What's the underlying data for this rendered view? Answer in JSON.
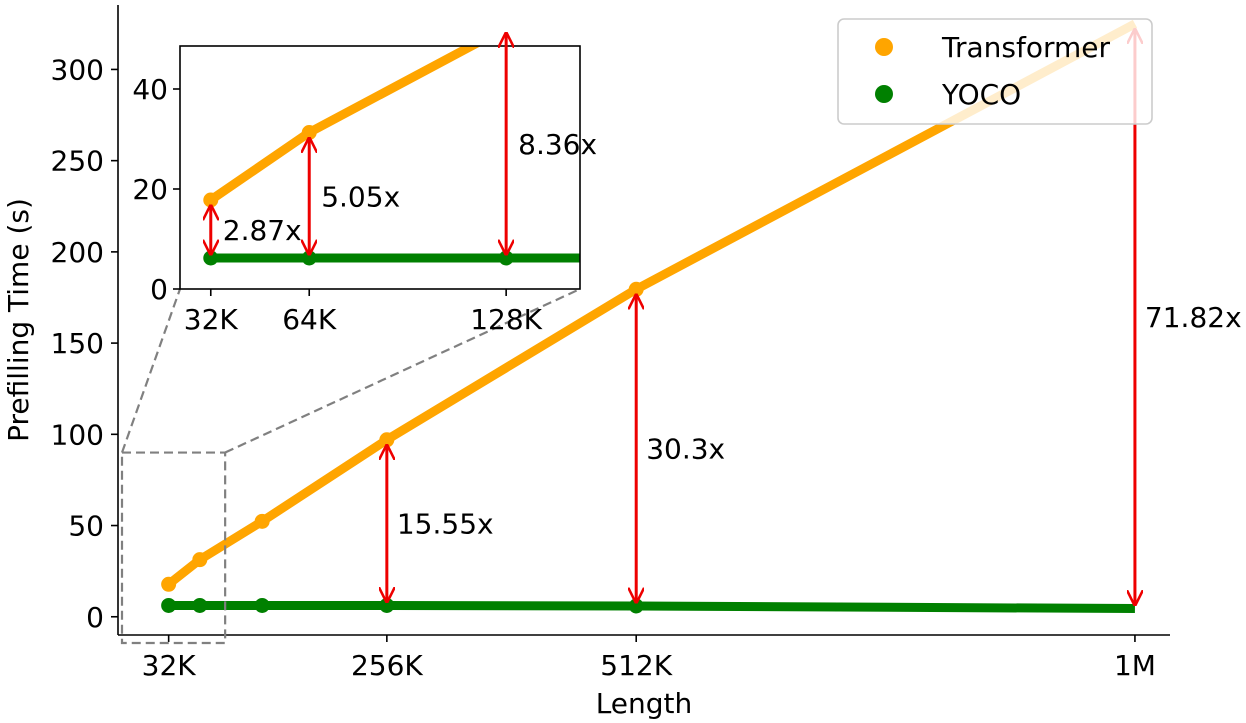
{
  "chart_data": {
    "type": "line",
    "xlabel": "Length",
    "ylabel": "Prefilling Time (s)",
    "xlim": [
      -20,
      1060
    ],
    "ylim": [
      -10,
      326
    ],
    "x_ticks": [
      {
        "value": 32,
        "label": "32K"
      },
      {
        "value": 256,
        "label": "256K"
      },
      {
        "value": 512,
        "label": "512K"
      },
      {
        "value": 1024,
        "label": "1M"
      }
    ],
    "y_ticks": [
      0,
      50,
      100,
      150,
      200,
      250,
      300
    ],
    "legend": {
      "position": "top-right",
      "entries": [
        "Transformer",
        "YOCO"
      ]
    },
    "series": [
      {
        "name": "Transformer",
        "color": "#ffa500",
        "x": [
          32,
          64,
          128,
          256,
          512,
          1024
        ],
        "y": [
          17.8,
          31.3,
          52.3,
          97.0,
          179.5,
          325.0
        ],
        "markers": [
          true,
          true,
          true,
          true,
          true,
          false
        ]
      },
      {
        "name": "YOCO",
        "color": "#008000",
        "x": [
          32,
          64,
          128,
          256,
          512,
          1024
        ],
        "y": [
          6.2,
          6.2,
          6.2,
          6.2,
          5.9,
          4.5
        ],
        "markers": [
          true,
          true,
          true,
          true,
          true,
          false
        ]
      }
    ],
    "speedup_annotations": [
      {
        "x": 256,
        "label": "15.55x"
      },
      {
        "x": 512,
        "label": "30.3x"
      },
      {
        "x": 1024,
        "label": "71.82x"
      }
    ],
    "inset": {
      "xlim": [
        22,
        152
      ],
      "ylim": [
        0,
        48
      ],
      "x_ticks": [
        {
          "value": 32,
          "label": "32K"
        },
        {
          "value": 64,
          "label": "64K"
        },
        {
          "value": 128,
          "label": "128K"
        }
      ],
      "y_ticks": [
        0,
        20,
        40
      ],
      "series": [
        {
          "name": "Transformer",
          "color": "#ffa500",
          "x": [
            32,
            64,
            128,
            152
          ],
          "y": [
            17.8,
            31.3,
            52.3,
            55.6
          ],
          "markers": [
            true,
            true,
            true,
            false
          ]
        },
        {
          "name": "YOCO",
          "color": "#008000",
          "x": [
            32,
            64,
            128,
            152
          ],
          "y": [
            6.2,
            6.2,
            6.2,
            6.2
          ],
          "markers": [
            true,
            true,
            true,
            false
          ]
        }
      ],
      "speedup_annotations": [
        {
          "x": 32,
          "label": "2.87x"
        },
        {
          "x": 64,
          "label": "5.05x"
        },
        {
          "x": 128,
          "label": "8.36x"
        }
      ],
      "zoom_region": {
        "x": [
          -20,
          90
        ],
        "y": [
          -10,
          90
        ]
      }
    },
    "colors": {
      "annotation_arrow": "#ee0000",
      "zoom_box": "#808080"
    }
  }
}
